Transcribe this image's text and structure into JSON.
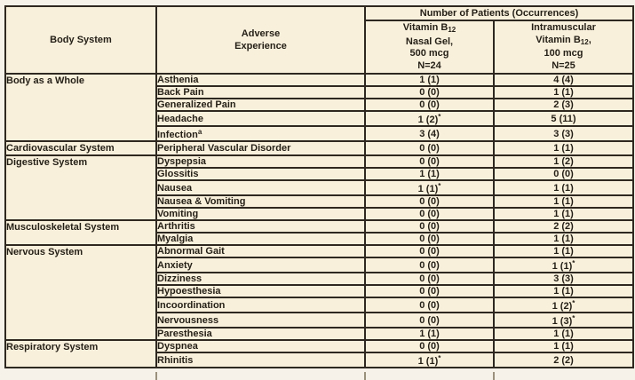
{
  "table": {
    "header": {
      "body_system": "Body System",
      "adverse_line1": "Adverse",
      "adverse_line2": "Experience",
      "patients_span": "Number of Patients (Occurrences)",
      "col_nasal": {
        "l1_pre": "Vitamin B",
        "l1_sub": "12",
        "l2": "Nasal Gel,",
        "l3": "500 mcg",
        "l4": "N=24"
      },
      "col_im": {
        "l1": "Intramuscular",
        "l2_pre": "Vitamin B",
        "l2_sub": "12",
        "l2_post": ",",
        "l3": "100 mcg",
        "l4": "N=25"
      }
    },
    "rows": [
      {
        "system": "Body as a Whole",
        "experience": "Asthenia",
        "nasal": "1 (1)",
        "im": "4 (4)"
      },
      {
        "experience": "Back Pain",
        "nasal": "0 (0)",
        "im": "1 (1)"
      },
      {
        "experience": "Generalized Pain",
        "nasal": "0 (0)",
        "im": "2 (3)"
      },
      {
        "experience": "Headache",
        "nasal": "1 (2)",
        "nasal_sup": "*",
        "im": "5 (11)"
      },
      {
        "experience": "Infection",
        "experience_sup": "a",
        "nasal": "3 (4)",
        "im": "3 (3)"
      },
      {
        "system": "Cardiovascular System",
        "experience": "Peripheral Vascular Disorder",
        "nasal": "0 (0)",
        "im": "1 (1)"
      },
      {
        "system": "Digestive System",
        "experience": "Dyspepsia",
        "nasal": "0 (0)",
        "im": "1 (2)"
      },
      {
        "experience": "Glossitis",
        "nasal": "1 (1)",
        "im": "0 (0)"
      },
      {
        "experience": "Nausea",
        "nasal": "1 (1)",
        "nasal_sup": "*",
        "im": "1 (1)"
      },
      {
        "experience": "Nausea & Vomiting",
        "nasal": "0 (0)",
        "im": "1 (1)"
      },
      {
        "experience": "Vomiting",
        "nasal": "0 (0)",
        "im": "1 (1)"
      },
      {
        "system": "Musculoskeletal System",
        "experience": "Arthritis",
        "nasal": "0 (0)",
        "im": "2 (2)"
      },
      {
        "experience": "Myalgia",
        "nasal": "0 (0)",
        "im": "1 (1)"
      },
      {
        "system": "Nervous System",
        "experience": "Abnormal Gait",
        "nasal": "0 (0)",
        "im": "1 (1)"
      },
      {
        "experience": "Anxiety",
        "nasal": "0 (0)",
        "im": "1 (1)",
        "im_sup": "*"
      },
      {
        "experience": "Dizziness",
        "nasal": "0 (0)",
        "im": "3 (3)"
      },
      {
        "experience": "Hypoesthesia",
        "nasal": "0 (0)",
        "im": "1 (1)"
      },
      {
        "experience": "Incoordination",
        "nasal": "0 (0)",
        "im": "1 (2)",
        "im_sup": "*"
      },
      {
        "experience": "Nervousness",
        "nasal": "0 (0)",
        "im": "1 (3)",
        "im_sup": "*"
      },
      {
        "experience": "Paresthesia",
        "nasal": "1 (1)",
        "im": "1 (1)"
      },
      {
        "system": "Respiratory System",
        "experience": "Dyspnea",
        "nasal": "0 (0)",
        "im": "1 (1)"
      },
      {
        "experience": "Rhinitis",
        "nasal": "1 (1)",
        "nasal_sup": "*",
        "im": "2 (2)"
      }
    ],
    "colors": {
      "table_background": "#f9f0dc",
      "border": "#2e2820",
      "text": "#241f16"
    }
  }
}
